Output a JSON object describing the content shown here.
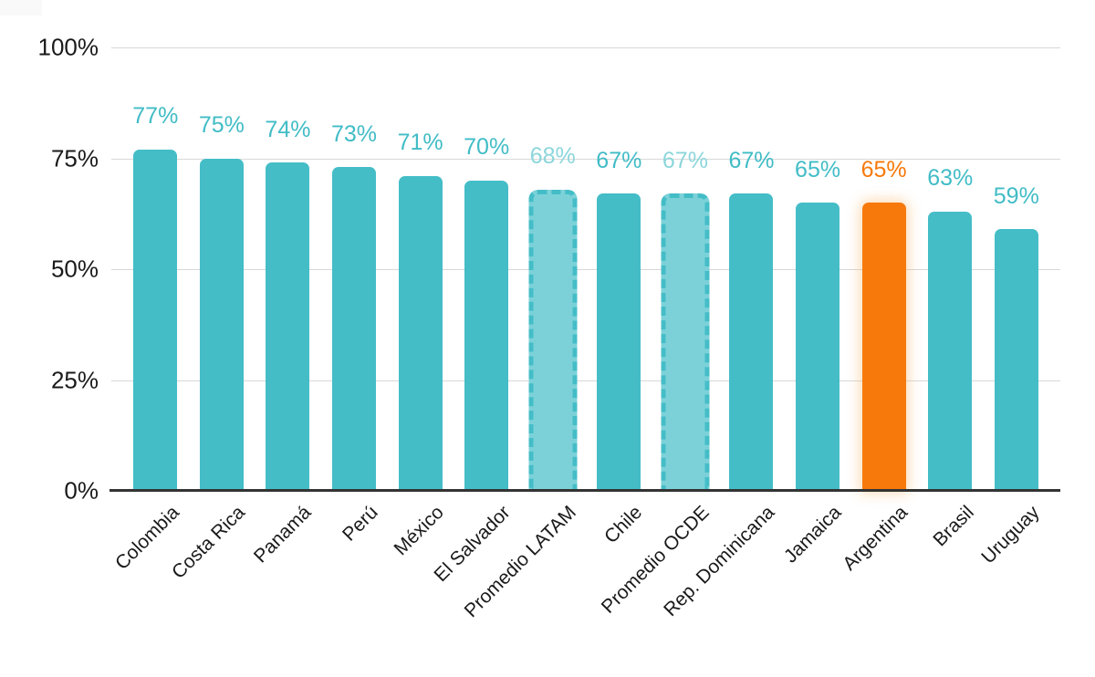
{
  "chart_data": {
    "type": "bar",
    "title": "",
    "xlabel": "",
    "ylabel": "",
    "categories": [
      "Colombia",
      "Costa Rica",
      "Panamá",
      "Perú",
      "México",
      "El Salvador",
      "Promedio LATAM",
      "Chile",
      "Promedio OCDE",
      "Rep. Dominicana",
      "Jamaica",
      "Argentina",
      "Brasil",
      "Uruguay"
    ],
    "values": [
      77,
      75,
      74,
      73,
      71,
      70,
      68,
      67,
      67,
      67,
      65,
      65,
      63,
      59
    ],
    "value_labels": [
      "77%",
      "75%",
      "74%",
      "73%",
      "71%",
      "70%",
      "68%",
      "67%",
      "67%",
      "67%",
      "65%",
      "65%",
      "63%",
      "59%"
    ],
    "bar_styles": [
      "solid",
      "solid",
      "solid",
      "solid",
      "solid",
      "solid",
      "dashed",
      "solid",
      "dashed",
      "solid",
      "solid",
      "highlight",
      "solid",
      "solid"
    ],
    "ylim": [
      0,
      100
    ],
    "yticks": [
      "0%",
      "25%",
      "50%",
      "75%",
      "100%"
    ],
    "ytick_values": [
      0,
      25,
      50,
      75,
      100
    ],
    "grid": true,
    "legend": "none",
    "colors": {
      "bar": "#44BDC7",
      "bar_light_fill": "#7CD1D8",
      "bar_dashed_border": "#44BDC7",
      "highlight": "#F7790B",
      "value_label": "#41BCC6",
      "value_label_muted": "#8CD6DB",
      "value_label_highlight": "#F7790B",
      "axis_line": "#333333",
      "gridline": "#D8D8D8",
      "tick_text": "#1A1A1A"
    }
  }
}
